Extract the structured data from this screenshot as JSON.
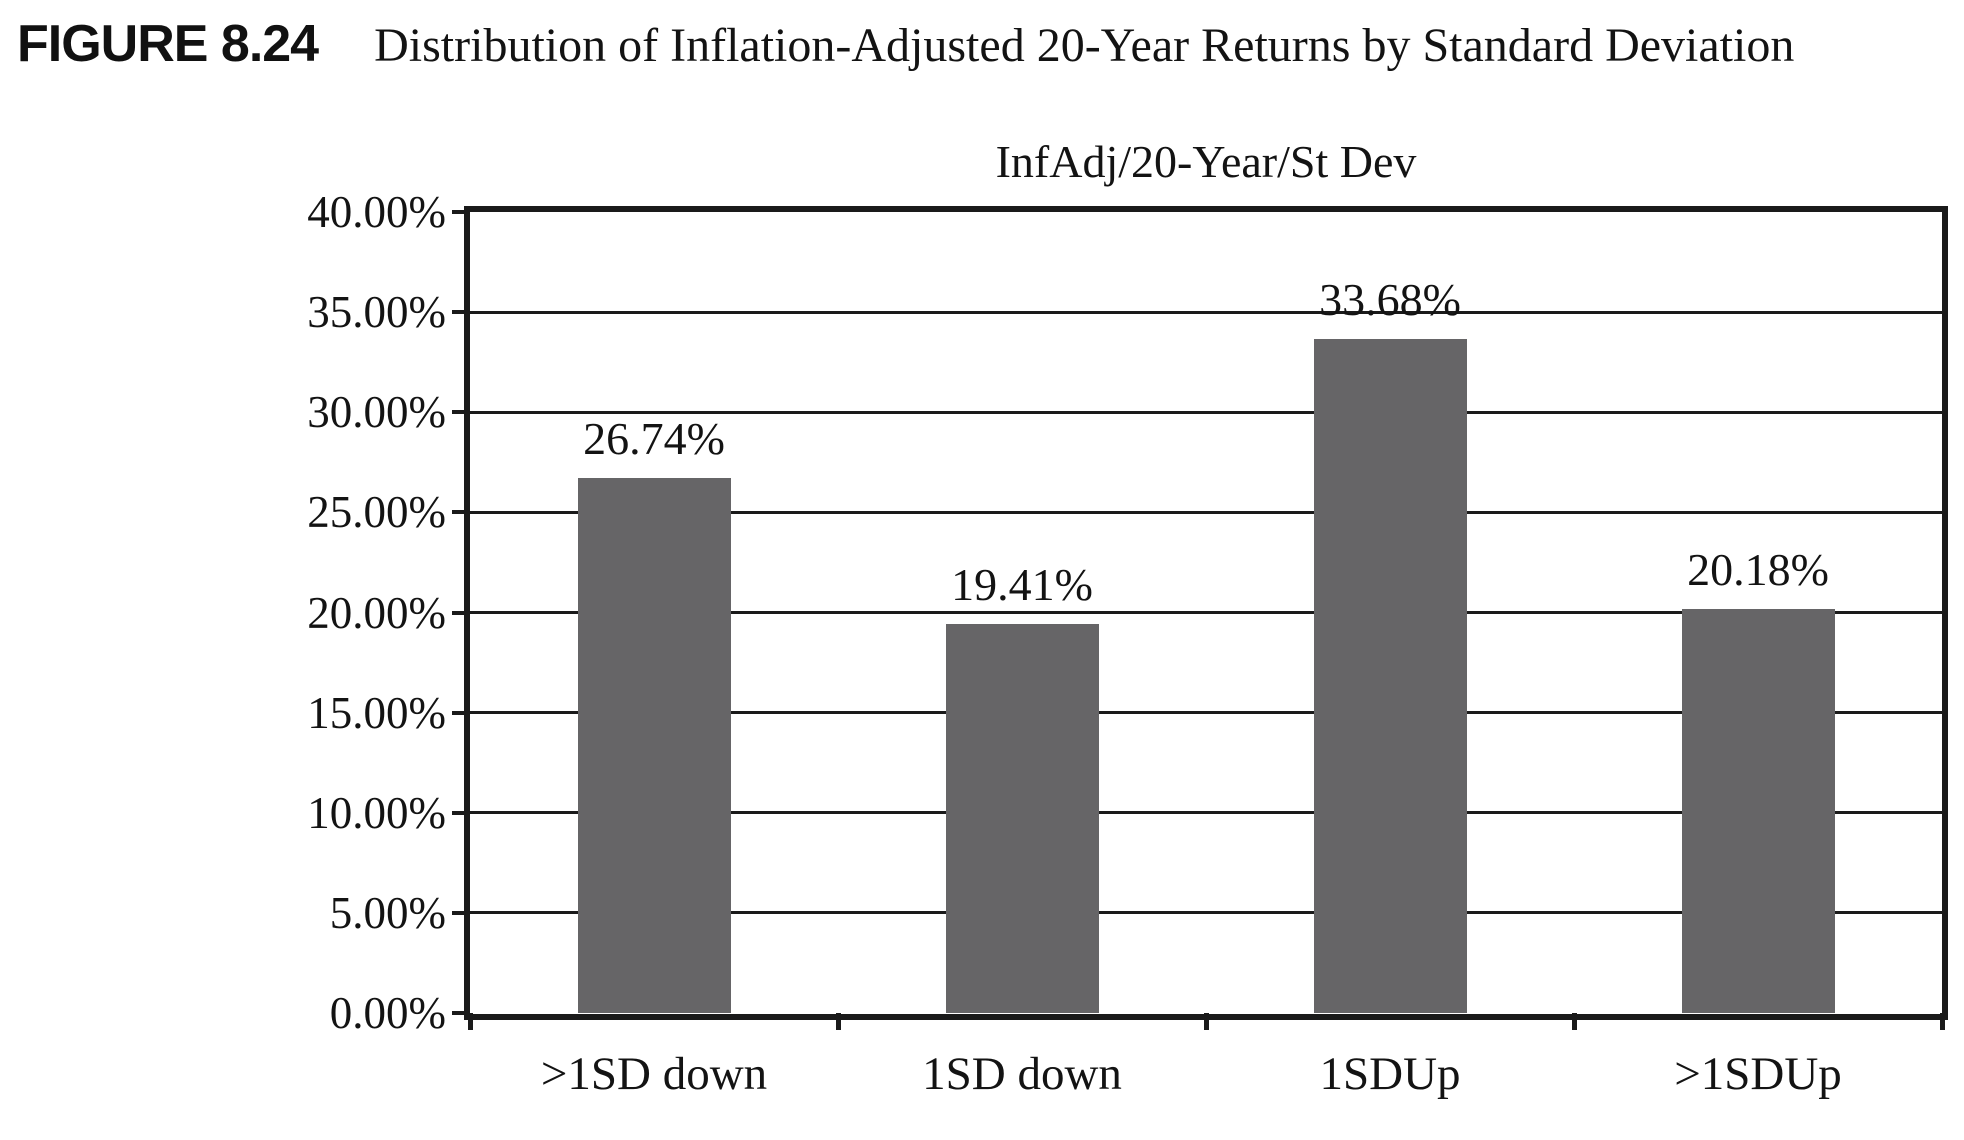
{
  "figure": {
    "label": "FIGURE 8.24",
    "title": "Distribution of Inflation-Adjusted 20-Year Returns by Standard Deviation"
  },
  "chart_data": {
    "type": "bar",
    "title": "InfAdj/20-Year/St Dev",
    "categories": [
      ">1SD down",
      "1SD down",
      "1SDUp",
      ">1SDUp"
    ],
    "values": [
      26.74,
      19.41,
      33.68,
      20.18
    ],
    "bar_labels": [
      "26.74%",
      "19.41%",
      "33.68%",
      "20.18%"
    ],
    "y_tick_labels": [
      "40.00%",
      "35.00%",
      "30.00%",
      "25.00%",
      "20.00%",
      "15.00%",
      "10.00%",
      "5.00%",
      "0.00%"
    ],
    "ylim": [
      0,
      40
    ],
    "ytick_step": 5,
    "xlabel": "",
    "ylabel": "",
    "grid": "horizontal",
    "legend": "none",
    "bar_color": "#666567",
    "axis_color": "#1a1a1a",
    "text_color": "#131313"
  }
}
